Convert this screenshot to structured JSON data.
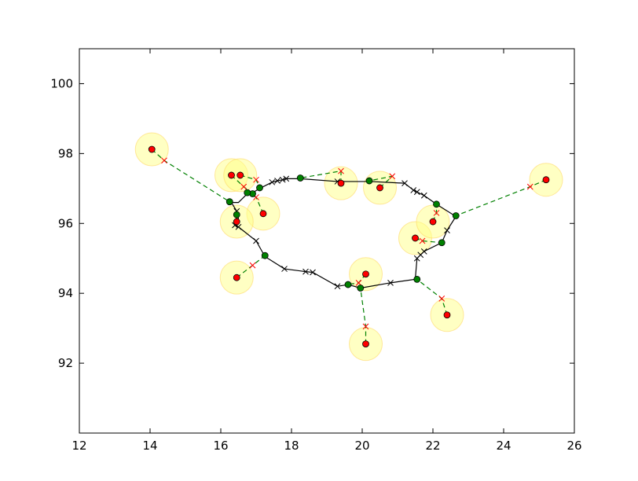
{
  "chart_data": {
    "type": "scatter",
    "title": "",
    "xlabel": "",
    "ylabel": "",
    "xlim": [
      12,
      26
    ],
    "ylim": [
      90,
      101
    ],
    "x_ticks": [
      12,
      14,
      16,
      18,
      20,
      22,
      24,
      26
    ],
    "y_ticks": [
      92,
      94,
      96,
      98,
      100
    ],
    "x_tick_labels": [
      "12",
      "14",
      "16",
      "18",
      "20",
      "22",
      "24",
      "26"
    ],
    "y_tick_labels": [
      "92",
      "94",
      "96",
      "98",
      "100"
    ],
    "grid": false,
    "legend": "none",
    "colors": {
      "path_line": "#000000",
      "connector": "#008000",
      "red_point": "#ff0000",
      "green_point": "#008000",
      "halo_fill": "#ffff88",
      "halo_stroke": "#ffd966"
    },
    "path": [
      [
        16.5,
        95.9
      ],
      [
        17.0,
        95.5
      ],
      [
        17.25,
        95.05
      ],
      [
        17.8,
        94.7
      ],
      [
        18.4,
        94.62
      ],
      [
        18.6,
        94.6
      ],
      [
        19.3,
        94.2
      ],
      [
        19.6,
        94.25
      ],
      [
        19.95,
        94.15
      ],
      [
        20.8,
        94.3
      ],
      [
        21.5,
        94.4
      ],
      [
        21.55,
        95.0
      ],
      [
        21.65,
        95.1
      ],
      [
        21.75,
        95.2
      ],
      [
        22.25,
        95.45
      ],
      [
        22.4,
        95.8
      ],
      [
        22.65,
        96.2
      ],
      [
        22.1,
        96.55
      ],
      [
        21.75,
        96.8
      ],
      [
        21.55,
        96.9
      ],
      [
        21.45,
        96.95
      ],
      [
        21.2,
        97.15
      ],
      [
        20.25,
        97.2
      ],
      [
        19.3,
        97.2
      ],
      [
        18.25,
        97.28
      ],
      [
        17.85,
        97.28
      ],
      [
        17.75,
        97.25
      ],
      [
        17.6,
        97.22
      ],
      [
        17.45,
        97.18
      ],
      [
        17.1,
        97.0
      ],
      [
        16.85,
        96.85
      ],
      [
        16.75,
        96.85
      ],
      [
        16.5,
        96.6
      ],
      [
        16.3,
        96.6
      ],
      [
        16.45,
        96.35
      ],
      [
        16.45,
        96.25
      ],
      [
        16.5,
        96.15
      ],
      [
        16.4,
        95.95
      ],
      [
        16.5,
        95.9
      ]
    ],
    "path_cross_markers": [
      [
        16.5,
        95.9
      ],
      [
        17.0,
        95.5
      ],
      [
        17.8,
        94.7
      ],
      [
        18.4,
        94.62
      ],
      [
        18.6,
        94.6
      ],
      [
        19.3,
        94.2
      ],
      [
        20.8,
        94.3
      ],
      [
        21.55,
        95.0
      ],
      [
        21.65,
        95.1
      ],
      [
        21.75,
        95.2
      ],
      [
        22.4,
        95.8
      ],
      [
        21.75,
        96.8
      ],
      [
        21.55,
        96.9
      ],
      [
        21.45,
        96.95
      ],
      [
        21.2,
        97.15
      ],
      [
        19.3,
        97.2
      ],
      [
        17.85,
        97.28
      ],
      [
        17.75,
        97.25
      ],
      [
        17.6,
        97.22
      ],
      [
        17.45,
        97.18
      ],
      [
        16.45,
        96.35
      ],
      [
        16.4,
        95.95
      ]
    ],
    "pairs": [
      {
        "red": [
          14.05,
          98.12
        ],
        "cross": [
          14.4,
          97.8
        ],
        "green": [
          16.25,
          96.62
        ]
      },
      {
        "red": [
          16.3,
          97.38
        ],
        "cross": [
          16.65,
          97.05
        ],
        "green": [
          16.9,
          96.85
        ]
      },
      {
        "red": [
          16.55,
          97.38
        ],
        "cross": [
          17.0,
          97.25
        ],
        "green": [
          17.1,
          97.02
        ]
      },
      {
        "red": [
          17.2,
          96.28
        ],
        "cross": [
          17.0,
          96.75
        ],
        "green": [
          16.75,
          96.88
        ]
      },
      {
        "red": [
          16.45,
          96.05
        ],
        "cross": [
          16.45,
          96.15
        ],
        "green": [
          16.45,
          96.25
        ]
      },
      {
        "red": [
          16.45,
          94.45
        ],
        "cross": [
          16.9,
          94.8
        ],
        "green": [
          17.25,
          95.08
        ]
      },
      {
        "red": [
          19.4,
          97.15
        ],
        "cross": [
          19.4,
          97.5
        ],
        "green": [
          18.25,
          97.3
        ]
      },
      {
        "red": [
          20.5,
          97.02
        ],
        "cross": [
          20.85,
          97.35
        ],
        "green": [
          20.2,
          97.22
        ]
      },
      {
        "red": [
          20.1,
          94.55
        ],
        "cross": [
          19.9,
          94.3
        ],
        "green": [
          19.6,
          94.25
        ]
      },
      {
        "red": [
          20.1,
          92.55
        ],
        "cross": [
          20.1,
          93.05
        ],
        "green": [
          19.95,
          94.15
        ]
      },
      {
        "red": [
          22.4,
          93.38
        ],
        "cross": [
          22.25,
          93.85
        ],
        "green": [
          21.55,
          94.4
        ]
      },
      {
        "red": [
          21.5,
          95.58
        ],
        "cross": [
          21.7,
          95.5
        ],
        "green": [
          22.25,
          95.45
        ]
      },
      {
        "red": [
          22.0,
          96.05
        ],
        "cross": [
          22.1,
          96.3
        ],
        "green": [
          22.1,
          96.55
        ]
      },
      {
        "red": [
          25.2,
          97.25
        ],
        "cross": [
          24.75,
          97.05
        ],
        "green": [
          22.65,
          96.22
        ]
      }
    ]
  }
}
